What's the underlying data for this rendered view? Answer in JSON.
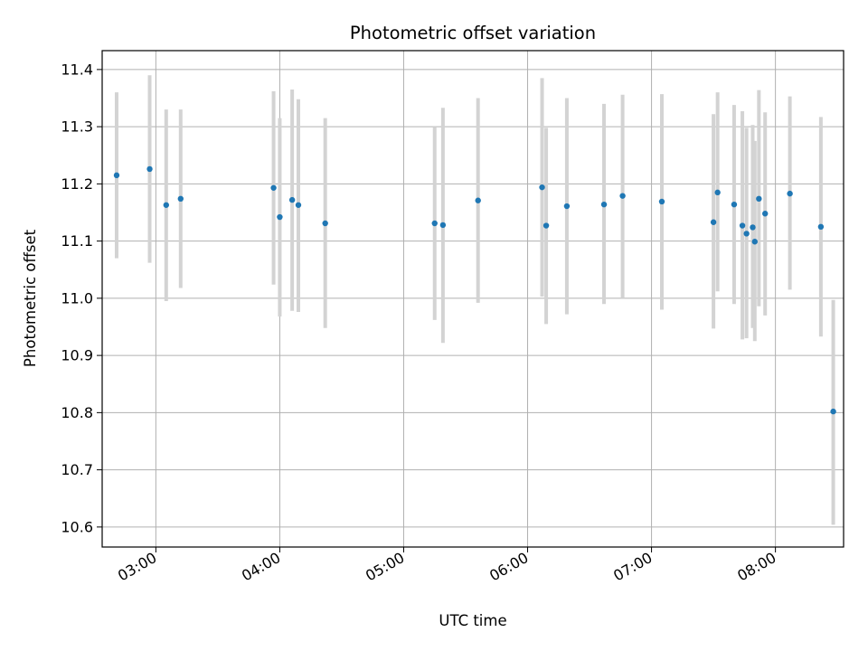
{
  "chart_data": {
    "type": "scatter",
    "title": "Photometric offset variation",
    "xlabel": "UTC time",
    "ylabel": "Photometric offset",
    "x_unit": "UTC time (HH:MM)",
    "xlim": [
      "02:34",
      "08:33"
    ],
    "ylim": [
      10.565,
      11.433
    ],
    "xticks": [
      "03:00",
      "04:00",
      "05:00",
      "06:00",
      "07:00",
      "08:00"
    ],
    "yticks": [
      "10.6",
      "10.7",
      "10.8",
      "10.9",
      "11.0",
      "11.1",
      "11.2",
      "11.3",
      "11.4"
    ],
    "grid": true,
    "points": [
      {
        "x": "02:41",
        "y": 11.215,
        "ylow": 11.07,
        "yhigh": 11.36
      },
      {
        "x": "02:57",
        "y": 11.226,
        "ylow": 11.062,
        "yhigh": 11.39
      },
      {
        "x": "03:05",
        "y": 11.163,
        "ylow": 10.995,
        "yhigh": 11.33
      },
      {
        "x": "03:12",
        "y": 11.174,
        "ylow": 11.018,
        "yhigh": 11.33
      },
      {
        "x": "03:57",
        "y": 11.193,
        "ylow": 11.024,
        "yhigh": 11.362
      },
      {
        "x": "04:00",
        "y": 11.142,
        "ylow": 10.968,
        "yhigh": 11.315
      },
      {
        "x": "04:06",
        "y": 11.172,
        "ylow": 10.978,
        "yhigh": 11.365
      },
      {
        "x": "04:09",
        "y": 11.163,
        "ylow": 10.976,
        "yhigh": 11.348
      },
      {
        "x": "04:22",
        "y": 11.131,
        "ylow": 10.948,
        "yhigh": 11.315
      },
      {
        "x": "05:15",
        "y": 11.131,
        "ylow": 10.962,
        "yhigh": 11.3
      },
      {
        "x": "05:19",
        "y": 11.128,
        "ylow": 10.922,
        "yhigh": 11.333
      },
      {
        "x": "05:36",
        "y": 11.171,
        "ylow": 10.992,
        "yhigh": 11.35
      },
      {
        "x": "06:07",
        "y": 11.194,
        "ylow": 11.003,
        "yhigh": 11.385
      },
      {
        "x": "06:09",
        "y": 11.127,
        "ylow": 10.955,
        "yhigh": 11.298
      },
      {
        "x": "06:19",
        "y": 11.161,
        "ylow": 10.972,
        "yhigh": 11.35
      },
      {
        "x": "06:37",
        "y": 11.164,
        "ylow": 10.99,
        "yhigh": 11.34
      },
      {
        "x": "06:46",
        "y": 11.179,
        "ylow": 11.0,
        "yhigh": 11.356
      },
      {
        "x": "07:05",
        "y": 11.169,
        "ylow": 10.98,
        "yhigh": 11.357
      },
      {
        "x": "07:30",
        "y": 11.133,
        "ylow": 10.947,
        "yhigh": 11.322
      },
      {
        "x": "07:32",
        "y": 11.185,
        "ylow": 11.012,
        "yhigh": 11.36
      },
      {
        "x": "07:40",
        "y": 11.164,
        "ylow": 10.99,
        "yhigh": 11.338
      },
      {
        "x": "07:44",
        "y": 11.127,
        "ylow": 10.928,
        "yhigh": 11.327
      },
      {
        "x": "07:46",
        "y": 11.113,
        "ylow": 10.93,
        "yhigh": 11.298
      },
      {
        "x": "07:49",
        "y": 11.124,
        "ylow": 10.948,
        "yhigh": 11.303
      },
      {
        "x": "07:50",
        "y": 11.099,
        "ylow": 10.925,
        "yhigh": 11.275
      },
      {
        "x": "07:52",
        "y": 11.174,
        "ylow": 10.986,
        "yhigh": 11.364
      },
      {
        "x": "07:55",
        "y": 11.148,
        "ylow": 10.97,
        "yhigh": 11.325
      },
      {
        "x": "08:07",
        "y": 11.183,
        "ylow": 11.015,
        "yhigh": 11.353
      },
      {
        "x": "08:22",
        "y": 11.125,
        "ylow": 10.933,
        "yhigh": 11.317
      },
      {
        "x": "08:28",
        "y": 10.802,
        "ylow": 10.604,
        "yhigh": 10.997
      }
    ],
    "colors": {
      "marker": "#1f77b4",
      "errorbar": "#d3d3d3",
      "grid": "#b0b0b0",
      "axes": "#000000"
    }
  }
}
